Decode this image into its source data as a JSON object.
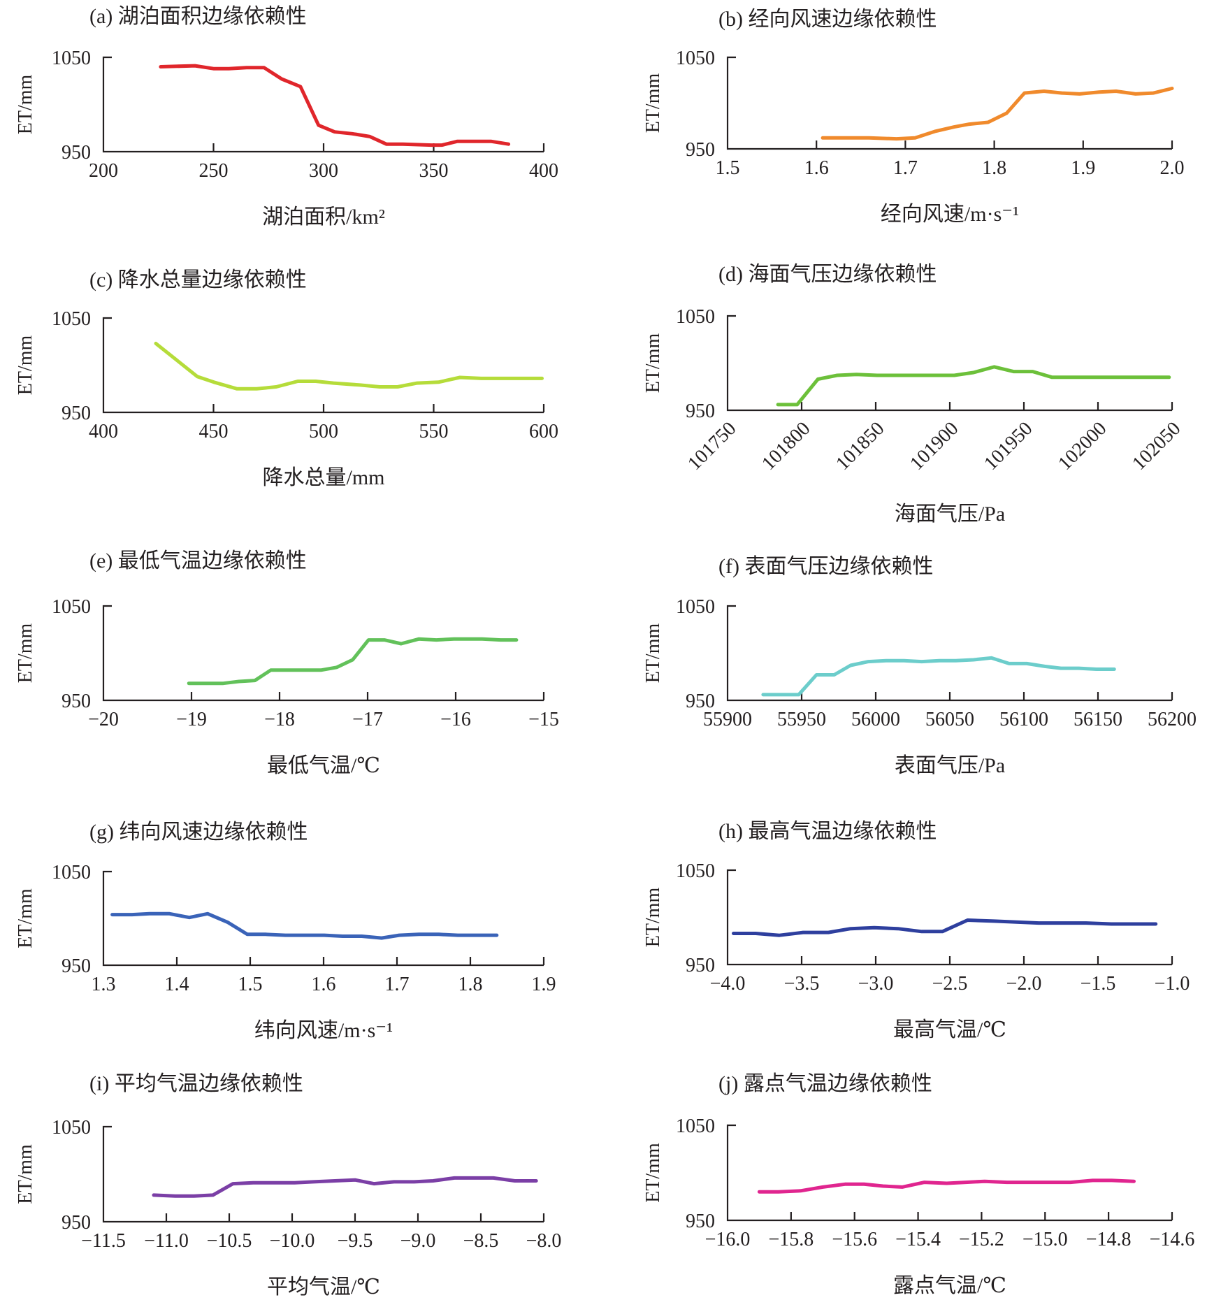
{
  "chart_data": [
    {
      "id": "a",
      "type": "line",
      "title": "(a) 湖泊面积边缘依赖性",
      "xlabel": "湖泊面积/km²",
      "ylabel": "ET/mm",
      "xlim": [
        200,
        400
      ],
      "ylim": [
        950,
        1050
      ],
      "xticks": [
        200,
        250,
        300,
        350,
        400
      ],
      "yticks": [
        950,
        1050
      ],
      "color": "#e0262b",
      "x": [
        226,
        241.6,
        250,
        257,
        265,
        273,
        281,
        289.5,
        297.7,
        305,
        313,
        321,
        328.5,
        336,
        349,
        353.8,
        360.8,
        368,
        376,
        384
      ],
      "y": [
        1040,
        1041,
        1038,
        1038,
        1039,
        1039,
        1027,
        1019,
        978,
        971,
        969,
        966,
        958,
        958,
        957,
        957,
        961,
        961,
        961,
        958
      ]
    },
    {
      "id": "b",
      "type": "line",
      "title": "(b) 经向风速边缘依赖性",
      "xlabel": "经向风速/m·s⁻¹",
      "ylabel": "ET/mm",
      "xlim": [
        1.5,
        2.0
      ],
      "ylim": [
        950,
        1050
      ],
      "xticks": [
        "1.5",
        "1.6",
        "1.7",
        "1.8",
        "1.9",
        "2.0"
      ],
      "yticks": [
        950,
        1050
      ],
      "color": "#f08a2c",
      "x": [
        1.607,
        1.659,
        1.69,
        1.711,
        1.733,
        1.755,
        1.772,
        1.793,
        1.814,
        1.834,
        1.856,
        1.876,
        1.896,
        1.918,
        1.937,
        1.959,
        1.979,
        2.0
      ],
      "y": [
        962,
        962,
        961,
        962,
        969,
        974,
        977,
        979,
        989,
        1011,
        1013,
        1011,
        1010,
        1012,
        1013,
        1010,
        1011,
        1016
      ]
    },
    {
      "id": "c",
      "type": "line",
      "title": "(c) 降水总量边缘依赖性",
      "xlabel": "降水总量/mm",
      "ylabel": "ET/mm",
      "xlim": [
        400,
        600
      ],
      "ylim": [
        950,
        1050
      ],
      "xticks": [
        400,
        450,
        500,
        550,
        600
      ],
      "yticks": [
        950,
        1050
      ],
      "color": "#b5dc3a",
      "x": [
        423.8,
        442.6,
        450.2,
        460.7,
        469.6,
        478.5,
        488.3,
        496.4,
        504.5,
        516.6,
        525.5,
        533.6,
        542.5,
        552.2,
        561.9,
        571.6,
        584.6,
        599.2
      ],
      "y": [
        1023,
        988,
        982,
        975,
        975,
        977,
        983,
        983,
        981,
        979,
        977,
        977,
        981,
        982,
        987,
        986,
        986,
        986
      ]
    },
    {
      "id": "d",
      "type": "line",
      "title": "(d) 海面气压边缘依赖性",
      "xlabel": "海面气压/Pa",
      "ylabel": "ET/mm",
      "xlim": [
        101750,
        102050
      ],
      "ylim": [
        950,
        1050
      ],
      "xticks": [
        101750,
        101800,
        101850,
        101900,
        101950,
        102000,
        102050
      ],
      "yticks": [
        950,
        1050
      ],
      "xtick_rotation": "diagonal",
      "color": "#6cc03a",
      "x": [
        101784,
        101797,
        101811,
        101824,
        101837,
        101851,
        101864,
        101877,
        101890,
        101903,
        101916,
        101930,
        101943,
        101956,
        101969,
        101982,
        101995,
        102008,
        102022,
        102035,
        102048
      ],
      "y": [
        956,
        956,
        983,
        987,
        988,
        987,
        987,
        987,
        987,
        987,
        990,
        996,
        991,
        991,
        985,
        985,
        985,
        985,
        985,
        985,
        985
      ]
    },
    {
      "id": "e",
      "type": "line",
      "title": "(e) 最低气温边缘依赖性",
      "xlabel": "最低气温/℃",
      "ylabel": "ET/mm",
      "xlim": [
        -20,
        -15
      ],
      "ylim": [
        950,
        1050
      ],
      "xticks": [
        "−20",
        "−19",
        "−18",
        "−17",
        "−16",
        "−15"
      ],
      "yticks": [
        950,
        1050
      ],
      "color": "#62c15a",
      "x": [
        -19.03,
        -18.83,
        -18.64,
        -18.46,
        -18.28,
        -18.1,
        -17.9,
        -17.72,
        -17.53,
        -17.35,
        -17.17,
        -16.99,
        -16.81,
        -16.62,
        -16.42,
        -16.22,
        -16.02,
        -15.7,
        -15.49,
        -15.31
      ],
      "y": [
        968,
        968,
        968,
        970,
        971,
        982,
        982,
        982,
        982,
        985,
        993,
        1014,
        1014,
        1010,
        1015,
        1014,
        1015,
        1015,
        1014,
        1014
      ]
    },
    {
      "id": "f",
      "type": "line",
      "title": "(f) 表面气压边缘依赖性",
      "xlabel": "表面气压/Pa",
      "ylabel": "ET/mm",
      "xlim": [
        55900,
        56200
      ],
      "ylim": [
        950,
        1050
      ],
      "xticks": [
        55900,
        55950,
        56000,
        56050,
        56100,
        56150,
        56200
      ],
      "yticks": [
        950,
        1050
      ],
      "color": "#6ccdcb",
      "x": [
        55924,
        55948,
        55960,
        55972,
        55983,
        55995,
        56007,
        56019,
        56031,
        56043,
        56054,
        56066,
        56078,
        56090,
        56102,
        56114,
        56125,
        56137,
        56149,
        56161
      ],
      "y": [
        956,
        956,
        977,
        977,
        987,
        991,
        992,
        992,
        991,
        992,
        992,
        993,
        995,
        989,
        989,
        986,
        984,
        984,
        983,
        983
      ]
    },
    {
      "id": "g",
      "type": "line",
      "title": "(g) 纬向风速边缘依赖性",
      "xlabel": "纬向风速/m·s⁻¹",
      "ylabel": "ET/mm",
      "xlim": [
        1.3,
        1.9
      ],
      "ylim": [
        950,
        1050
      ],
      "xticks": [
        "1.3",
        "1.4",
        "1.5",
        "1.6",
        "1.7",
        "1.8",
        "1.9"
      ],
      "yticks": [
        950,
        1050
      ],
      "color": "#3a63b8",
      "x": [
        1.312,
        1.339,
        1.363,
        1.39,
        1.417,
        1.442,
        1.469,
        1.496,
        1.521,
        1.548,
        1.575,
        1.601,
        1.626,
        1.652,
        1.679,
        1.703,
        1.73,
        1.757,
        1.783,
        1.836
      ],
      "y": [
        1004,
        1004,
        1005,
        1005,
        1001,
        1005,
        996,
        983,
        983,
        982,
        982,
        982,
        981,
        981,
        979,
        982,
        983,
        983,
        982,
        982
      ]
    },
    {
      "id": "h",
      "type": "line",
      "title": "(h) 最高气温边缘依赖性",
      "xlabel": "最高气温/℃",
      "ylabel": "ET/mm",
      "xlim": [
        -4.0,
        -1.0
      ],
      "ylim": [
        950,
        1050
      ],
      "xticks": [
        "−4.0",
        "−3.5",
        "−3.0",
        "−2.5",
        "−2.0",
        "−1.5",
        "−1.0"
      ],
      "yticks": [
        950,
        1050
      ],
      "color": "#2e3f9e",
      "x": [
        -3.96,
        -3.81,
        -3.65,
        -3.49,
        -3.32,
        -3.17,
        -3.01,
        -2.85,
        -2.69,
        -2.55,
        -2.38,
        -2.2,
        -2.05,
        -1.9,
        -1.74,
        -1.58,
        -1.41,
        -1.26,
        -1.11
      ],
      "y": [
        983,
        983,
        981,
        984,
        984,
        988,
        989,
        988,
        985,
        985,
        997,
        996,
        995,
        994,
        994,
        994,
        993,
        993,
        993
      ]
    },
    {
      "id": "i",
      "type": "line",
      "title": "(i) 平均气温边缘依赖性",
      "xlabel": "平均气温/℃",
      "ylabel": "ET/mm",
      "xlim": [
        -11.5,
        -8.0
      ],
      "ylim": [
        950,
        1050
      ],
      "xticks": [
        "−11.5",
        "−11.0",
        "−10.5",
        "−10.0",
        "−9.5",
        "−9.0",
        "−8.5",
        "−8.0"
      ],
      "yticks": [
        950,
        1050
      ],
      "color": "#7b3fa6",
      "x": [
        -11.1,
        -10.93,
        -10.78,
        -10.63,
        -10.47,
        -10.31,
        -10.15,
        -9.98,
        -9.83,
        -9.66,
        -9.5,
        -9.35,
        -9.19,
        -9.03,
        -8.88,
        -8.71,
        -8.55,
        -8.4,
        -8.23,
        -8.06
      ],
      "y": [
        978,
        977,
        977,
        978,
        990,
        991,
        991,
        991,
        992,
        993,
        994,
        990,
        992,
        992,
        993,
        996,
        996,
        996,
        993,
        993
      ]
    },
    {
      "id": "j",
      "type": "line",
      "title": "(j) 露点气温边缘依赖性",
      "xlabel": "露点气温/℃",
      "ylabel": "ET/mm",
      "xlim": [
        -16.0,
        -14.6
      ],
      "ylim": [
        950,
        1050
      ],
      "xticks": [
        "−16.0",
        "−15.8",
        "−15.6",
        "−15.4",
        "−15.2",
        "−15.0",
        "−14.8",
        "−14.6"
      ],
      "yticks": [
        950,
        1050
      ],
      "color": "#e0258f",
      "x": [
        -15.9,
        -15.84,
        -15.77,
        -15.7,
        -15.63,
        -15.57,
        -15.51,
        -15.45,
        -15.38,
        -15.31,
        -15.25,
        -15.19,
        -15.12,
        -15.05,
        -14.99,
        -14.92,
        -14.85,
        -14.79,
        -14.72
      ],
      "y": [
        980,
        980,
        981,
        985,
        988,
        988,
        986,
        985,
        990,
        989,
        990,
        991,
        990,
        990,
        990,
        990,
        992,
        992,
        991
      ]
    }
  ]
}
